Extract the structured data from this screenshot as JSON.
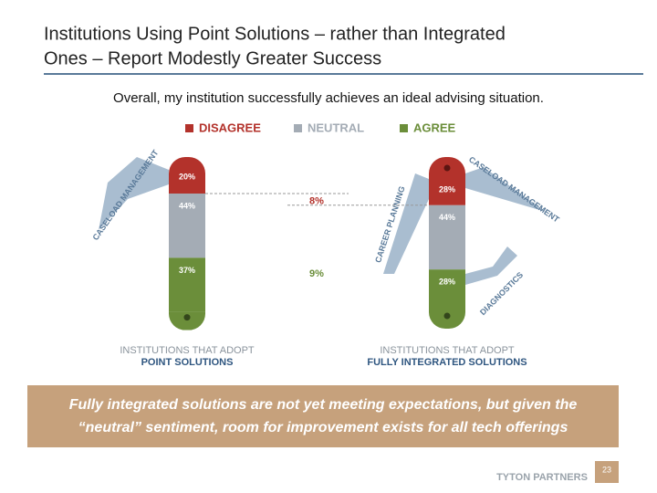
{
  "header": {
    "title": [
      "Institutions Using Point Solutions – rather than Integrated",
      "Ones – Report Modestly Greater Success"
    ]
  },
  "chart_data": {
    "type": "bar",
    "stacked": true,
    "subtitle": "Overall, my institution successfully achieves an ideal advising situation.",
    "category_prefix": "INSTITUTIONS THAT ADOPT",
    "categories": [
      "POINT SOLUTIONS",
      "FULLY INTEGRATED SOLUTIONS"
    ],
    "series": [
      {
        "name": "DISAGREE",
        "color": "#b3322b",
        "values": [
          20,
          28
        ],
        "value_labels": [
          "20%",
          "28%"
        ]
      },
      {
        "name": "NEUTRAL",
        "color": "#a4acb5",
        "values": [
          44,
          44
        ],
        "value_labels": [
          "44%",
          "44%"
        ]
      },
      {
        "name": "AGREE",
        "color": "#6b8e3a",
        "values": [
          37,
          28
        ],
        "value_labels": [
          "37%",
          "28%"
        ]
      }
    ],
    "annotations": [
      "8%",
      "9%"
    ],
    "blade_labels": [
      "CASELOAD MANAGEMENT",
      "CAREER PLANNING",
      "CASELOAD MANAGEMENT",
      "DIAGNOSTICS"
    ]
  },
  "callout": [
    "Fully integrated solutions are not yet meeting expectations, but given the",
    "“neutral” sentiment, room for improvement exists for all tech offerings"
  ],
  "footer": {
    "brand": "TYTON PARTNERS",
    "page": "23"
  }
}
